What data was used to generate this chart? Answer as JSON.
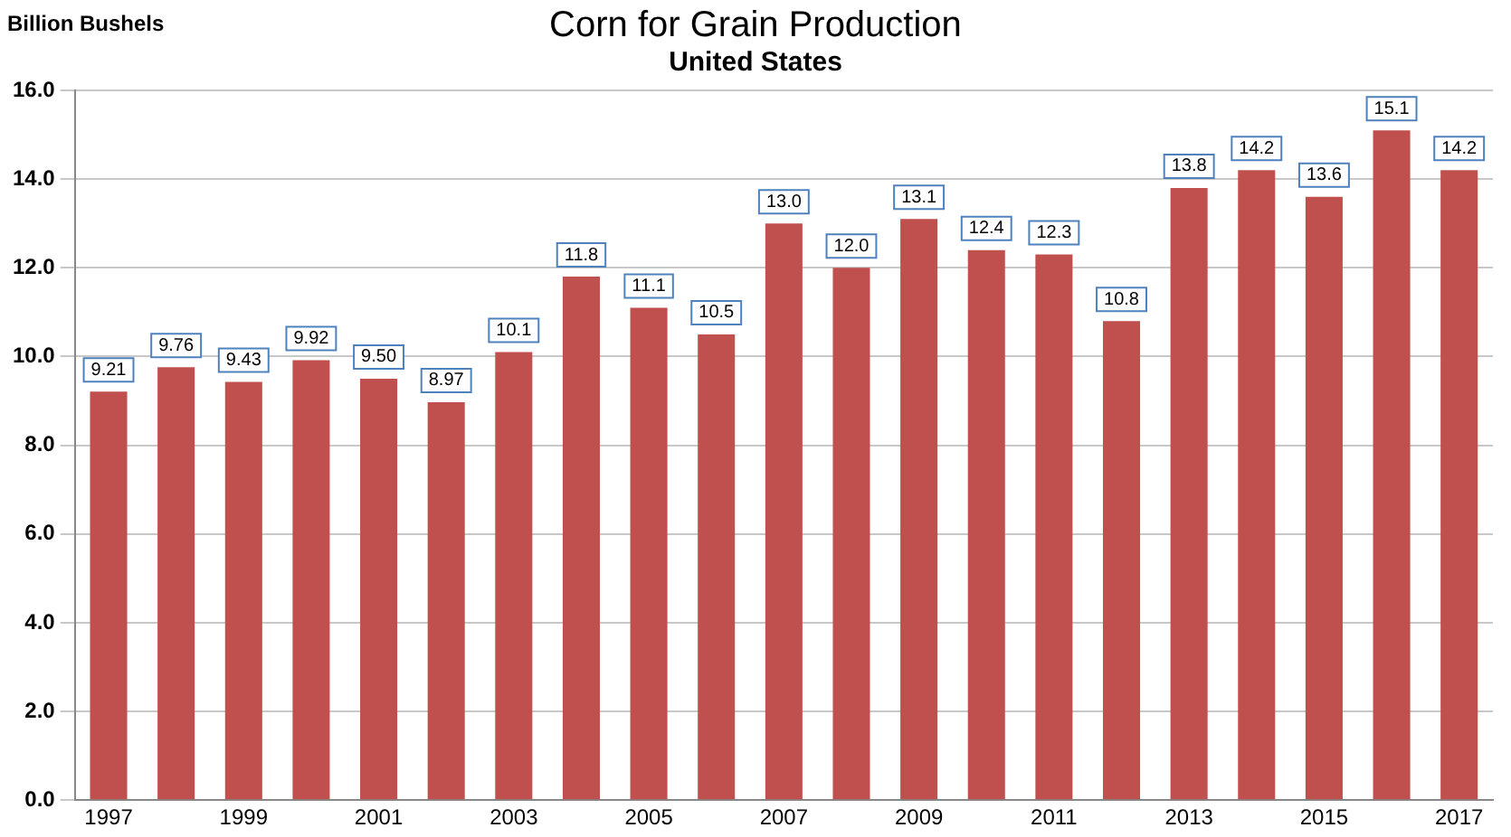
{
  "chart_data": {
    "type": "bar",
    "title": "Corn for Grain Production",
    "subtitle": "United States",
    "ylabel": "Billion Bushels",
    "categories": [
      "1997",
      null,
      "1999",
      null,
      "2001",
      null,
      "2003",
      null,
      "2005",
      null,
      "2007",
      null,
      "2009",
      null,
      "2011",
      null,
      "2013",
      null,
      "2015",
      null,
      "2017"
    ],
    "values": [
      9.21,
      9.76,
      9.43,
      9.92,
      9.5,
      8.97,
      10.1,
      11.8,
      11.1,
      10.5,
      13.0,
      12.0,
      13.1,
      12.4,
      12.3,
      10.8,
      13.8,
      14.2,
      13.6,
      15.1,
      14.2
    ],
    "value_labels": [
      "9.21",
      "9.76",
      "9.43",
      "9.92",
      "9.50",
      "8.97",
      "10.1",
      "11.8",
      "11.1",
      "10.5",
      "13.0",
      "12.0",
      "13.1",
      "12.4",
      "12.3",
      "10.8",
      "13.8",
      "14.2",
      "13.6",
      "15.1",
      "14.2"
    ],
    "color": "#c0504d",
    "ylim": [
      0,
      16
    ],
    "yticks": [
      {
        "value": 0,
        "label": "0.0"
      },
      {
        "value": 2,
        "label": "2.0"
      },
      {
        "value": 4,
        "label": "4.0"
      },
      {
        "value": 6,
        "label": "6.0"
      },
      {
        "value": 8,
        "label": "8.0"
      },
      {
        "value": 10,
        "label": "10.0"
      },
      {
        "value": 12,
        "label": "12.0"
      },
      {
        "value": 14,
        "label": "14.0"
      },
      {
        "value": 16,
        "label": "16.0"
      }
    ],
    "grid": "y",
    "legend": false
  }
}
